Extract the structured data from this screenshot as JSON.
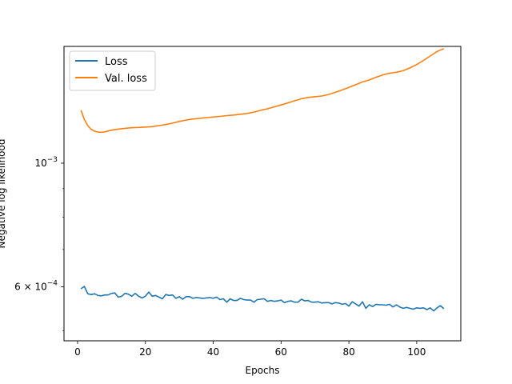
{
  "chart_data": {
    "type": "line",
    "title": "",
    "xlabel": "Epochs",
    "ylabel": "Negative log likelihood",
    "xscale": "linear",
    "yscale": "log",
    "xlim": [
      -4,
      113
    ],
    "ylim": [
      0.00048,
      0.00162
    ],
    "xticks": [
      0,
      20,
      40,
      60,
      80,
      100
    ],
    "yticks": [
      {
        "value": 0.001,
        "base": "10",
        "exp": "−3",
        "mantissa": ""
      },
      {
        "value": 0.0006,
        "base": "10",
        "exp": "−4",
        "mantissa": "6 × "
      }
    ],
    "grid": false,
    "legend": {
      "placement": "upper-left"
    },
    "series": [
      {
        "name": "Loss",
        "color": "#1f77b4",
        "x": [
          1,
          2,
          3,
          4,
          5,
          6,
          7,
          8,
          9,
          10,
          11,
          12,
          13,
          14,
          15,
          16,
          17,
          18,
          19,
          20,
          21,
          22,
          23,
          24,
          25,
          26,
          27,
          28,
          29,
          30,
          31,
          32,
          33,
          34,
          35,
          36,
          37,
          38,
          39,
          40,
          41,
          42,
          43,
          44,
          45,
          46,
          47,
          48,
          49,
          50,
          51,
          52,
          53,
          54,
          55,
          56,
          57,
          58,
          59,
          60,
          61,
          62,
          63,
          64,
          65,
          66,
          67,
          68,
          69,
          70,
          71,
          72,
          73,
          74,
          75,
          76,
          77,
          78,
          79,
          80,
          81,
          82,
          83,
          84,
          85,
          86,
          87,
          88,
          89,
          90,
          91,
          92,
          93,
          94,
          95,
          96,
          97,
          98,
          99,
          100,
          101,
          102,
          103,
          104,
          105,
          106,
          107,
          108
        ],
        "values": [
          0.000595,
          0.000601,
          0.000583,
          0.000581,
          0.000583,
          0.000579,
          0.000578,
          0.00058,
          0.00058,
          0.000584,
          0.000585,
          0.000575,
          0.000577,
          0.000584,
          0.000582,
          0.000577,
          0.000584,
          0.000577,
          0.000573,
          0.000577,
          0.000587,
          0.000577,
          0.000579,
          0.000575,
          0.000571,
          0.000581,
          0.000579,
          0.00058,
          0.000572,
          0.000576,
          0.00057,
          0.000576,
          0.000576,
          0.000572,
          0.000574,
          0.000573,
          0.000572,
          0.000573,
          0.000574,
          0.000572,
          0.000575,
          0.000569,
          0.000571,
          0.000563,
          0.000571,
          0.000567,
          0.000567,
          0.000572,
          0.000569,
          0.000568,
          0.000568,
          0.000563,
          0.000569,
          0.00057,
          0.000571,
          0.000565,
          0.000567,
          0.000565,
          0.000566,
          0.000568,
          0.000562,
          0.000565,
          0.000566,
          0.000563,
          0.000563,
          0.00057,
          0.000566,
          0.000567,
          0.000563,
          0.000563,
          0.000564,
          0.000561,
          0.000562,
          0.000562,
          0.000559,
          0.000562,
          0.000561,
          0.000558,
          0.00056,
          0.000554,
          0.000564,
          0.000559,
          0.000554,
          0.000564,
          0.000549,
          0.000557,
          0.000553,
          0.000558,
          0.000557,
          0.000557,
          0.000556,
          0.000558,
          0.000552,
          0.000557,
          0.000552,
          0.000549,
          0.000551,
          0.000549,
          0.000547,
          0.00055,
          0.000549,
          0.00055,
          0.000546,
          0.00055,
          0.000543,
          0.00055,
          0.000555,
          0.000548
        ]
      },
      {
        "name": "Val. loss",
        "color": "#ff7f0e",
        "x": [
          1,
          2,
          3,
          4,
          5,
          6,
          7,
          8,
          9,
          10,
          12,
          14,
          16,
          18,
          20,
          22,
          24,
          26,
          28,
          30,
          32,
          34,
          36,
          38,
          40,
          42,
          44,
          46,
          48,
          50,
          52,
          54,
          56,
          58,
          60,
          62,
          64,
          66,
          68,
          70,
          72,
          74,
          76,
          78,
          80,
          82,
          84,
          86,
          88,
          90,
          92,
          94,
          96,
          98,
          100,
          102,
          104,
          106,
          108
        ],
        "values": [
          0.001245,
          0.001198,
          0.001168,
          0.00115,
          0.001141,
          0.001137,
          0.001136,
          0.001138,
          0.001142,
          0.001146,
          0.001151,
          0.001155,
          0.001158,
          0.001159,
          0.001161,
          0.001163,
          0.001168,
          0.001173,
          0.00118,
          0.001188,
          0.001195,
          0.0012,
          0.001203,
          0.001207,
          0.00121,
          0.001213,
          0.001217,
          0.00122,
          0.001224,
          0.001228,
          0.001235,
          0.001244,
          0.001252,
          0.001262,
          0.001272,
          0.001283,
          0.001294,
          0.001305,
          0.001312,
          0.001316,
          0.00132,
          0.001328,
          0.00134,
          0.001353,
          0.001368,
          0.001383,
          0.001399,
          0.00141,
          0.001426,
          0.00144,
          0.00145,
          0.001456,
          0.001465,
          0.001482,
          0.001503,
          0.001529,
          0.001557,
          0.001586,
          0.001605
        ]
      }
    ]
  }
}
